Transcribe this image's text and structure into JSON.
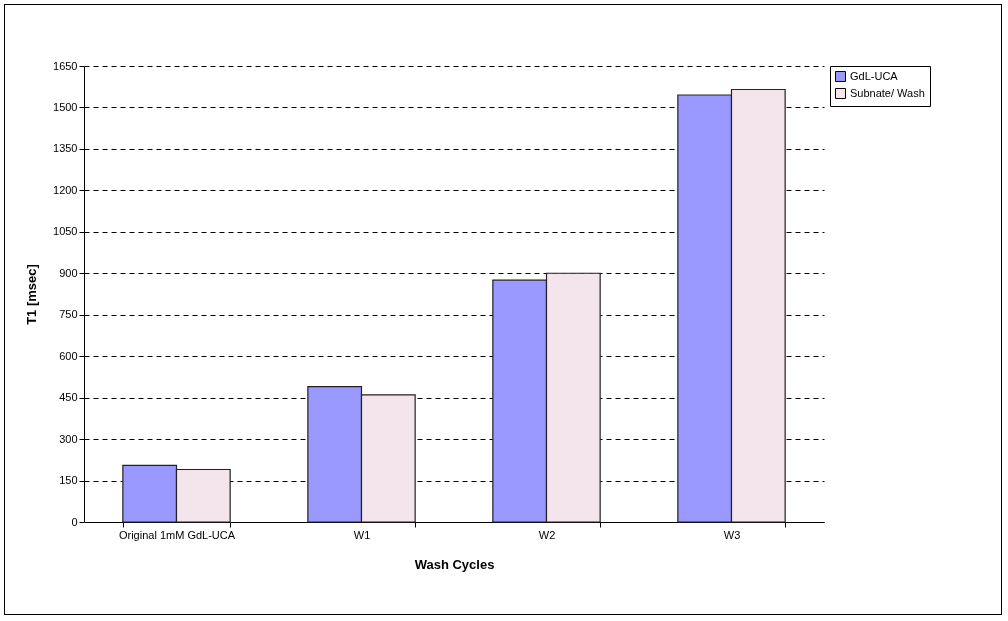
{
  "chart_data": {
    "type": "bar",
    "xlabel": "Wash Cycles",
    "ylabel": "T1 [msec]",
    "categories": [
      "Original 1mM GdL-UCA",
      "W1",
      "W2",
      "W3"
    ],
    "series": [
      {
        "name": "GdL-UCA",
        "color": "#9999ff",
        "values": [
          205,
          490,
          875,
          1545
        ]
      },
      {
        "name": "Subnate/ Wash",
        "color": "#f4e4ec",
        "values": [
          190,
          460,
          900,
          1565
        ]
      }
    ],
    "ylim": [
      0,
      1650
    ],
    "yticks": [
      0,
      150,
      300,
      450,
      600,
      750,
      900,
      1050,
      1200,
      1350,
      1500,
      1650
    ],
    "grid": "y",
    "legend": "right"
  }
}
